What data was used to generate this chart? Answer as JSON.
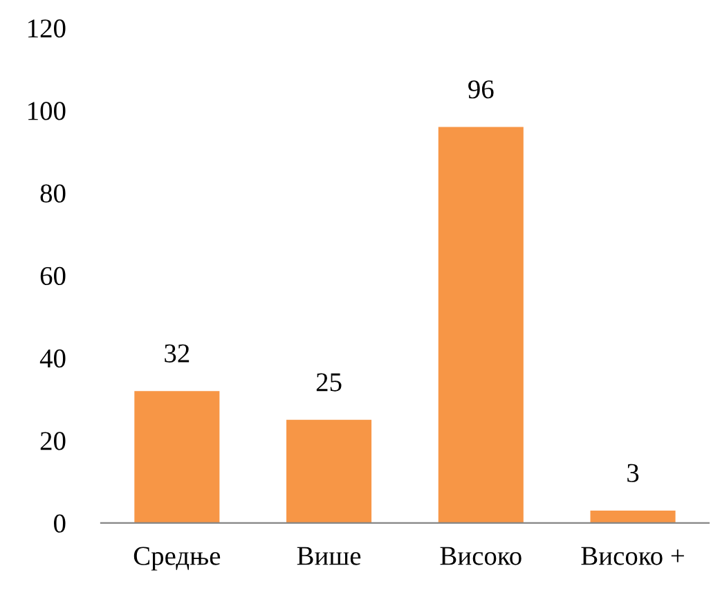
{
  "chart_data": {
    "type": "bar",
    "categories": [
      "Средње",
      "Више",
      "Високо",
      "Високо +"
    ],
    "values": [
      32,
      25,
      96,
      3
    ],
    "color": "#f79646",
    "ylim": [
      0,
      120
    ],
    "yticks": [
      0,
      20,
      40,
      60,
      80,
      100,
      120
    ],
    "grid": false,
    "data_labels": true
  }
}
